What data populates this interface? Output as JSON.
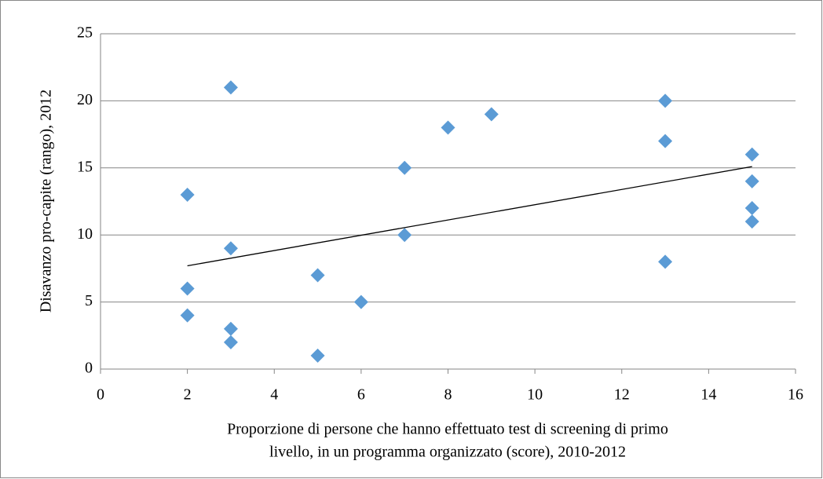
{
  "chart_data": {
    "type": "scatter",
    "xlabel": [
      "Proporzione di persone che hanno effettuato test di screening di primo",
      "livello, in un programma organizzato (score), 2010-2012"
    ],
    "ylabel": "Disavanzo pro-capite (rango), 2012",
    "x": [
      2,
      2,
      2,
      3,
      3,
      3,
      3,
      5,
      5,
      6,
      7,
      7,
      8,
      9,
      13,
      13,
      13,
      15,
      15,
      15,
      15
    ],
    "values": [
      13,
      6,
      4,
      21,
      9,
      3,
      2,
      7,
      1,
      5,
      15,
      10,
      18,
      19,
      20,
      17,
      8,
      16,
      14,
      12,
      11
    ],
    "color": "#5b9bd5",
    "trendline": {
      "x": [
        2,
        15
      ],
      "y": [
        7.7,
        15.1
      ],
      "color": "#000000"
    },
    "xlim": [
      0,
      16
    ],
    "xticks": [
      0,
      2,
      4,
      6,
      8,
      10,
      12,
      14,
      16
    ],
    "ylim": [
      0,
      25
    ],
    "yticks": [
      0,
      5,
      10,
      15,
      20,
      25
    ],
    "grid": true
  }
}
